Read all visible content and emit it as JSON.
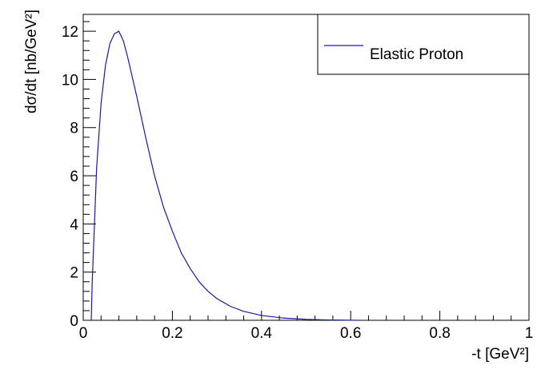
{
  "chart_data": {
    "type": "line",
    "xlabel": "-t [GeV²]",
    "ylabel": "dσ/dt [nb/GeV²]",
    "x": [
      0.018,
      0.02,
      0.03,
      0.04,
      0.05,
      0.06,
      0.07,
      0.08,
      0.09,
      0.1,
      0.12,
      0.14,
      0.16,
      0.18,
      0.2,
      0.22,
      0.24,
      0.26,
      0.28,
      0.3,
      0.33,
      0.36,
      0.4,
      0.45,
      0.5,
      0.55,
      0.62
    ],
    "series": [
      {
        "name": "Elastic Proton",
        "color": "#1a1a99",
        "values": [
          0,
          1.5,
          6.3,
          9.0,
          10.6,
          11.5,
          11.9,
          12.0,
          11.6,
          10.9,
          9.3,
          7.6,
          6.0,
          4.7,
          3.7,
          2.8,
          2.15,
          1.6,
          1.2,
          0.9,
          0.58,
          0.37,
          0.2,
          0.09,
          0.04,
          0.015,
          0
        ]
      }
    ],
    "xlim": [
      0,
      1
    ],
    "xticks": [
      0,
      0.2,
      0.4,
      0.6,
      0.8,
      1
    ],
    "ylim": [
      0,
      12.7
    ],
    "yticks": [
      0,
      2,
      4,
      6,
      8,
      10,
      12
    ],
    "legend": "top-right"
  }
}
